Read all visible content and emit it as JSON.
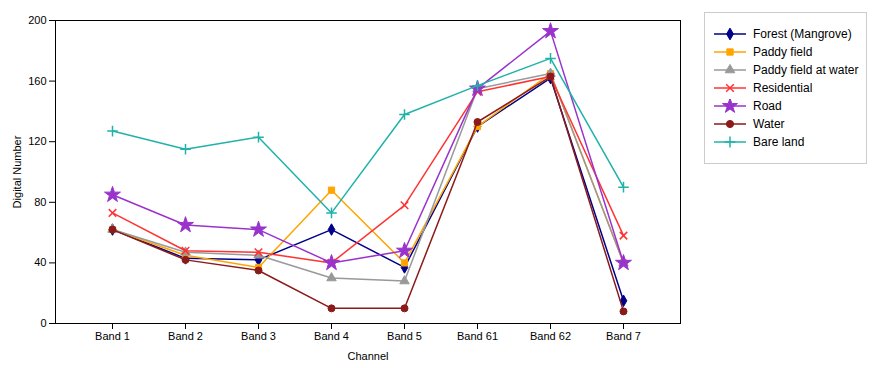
{
  "chart_data": {
    "type": "line",
    "xlabel": "Channel",
    "ylabel": "Digital Number",
    "categories": [
      "Band 1",
      "Band 2",
      "Band 3",
      "Band 4",
      "Band 5",
      "Band 61",
      "Band 62",
      "Band 7"
    ],
    "series": [
      {
        "name": "Forest (Mangrove)",
        "color": "#00008B",
        "marker": "diamond",
        "values": [
          62,
          43,
          42,
          62,
          37,
          130,
          162,
          15
        ]
      },
      {
        "name": "Paddy field",
        "color": "#FFA500",
        "marker": "square",
        "values": [
          62,
          45,
          37,
          88,
          40,
          130,
          165,
          40
        ]
      },
      {
        "name": "Paddy field at water",
        "color": "#999999",
        "marker": "triangle",
        "values": [
          62,
          47,
          45,
          30,
          28,
          155,
          165,
          40
        ]
      },
      {
        "name": "Residential",
        "color": "#FF3333",
        "marker": "x",
        "values": [
          73,
          48,
          47,
          40,
          78,
          153,
          163,
          58
        ]
      },
      {
        "name": "Road",
        "color": "#9933CC",
        "marker": "star",
        "values": [
          85,
          65,
          62,
          40,
          48,
          155,
          193,
          40
        ]
      },
      {
        "name": "Water",
        "color": "#8B1A1A",
        "marker": "circle",
        "values": [
          62,
          42,
          35,
          10,
          10,
          133,
          163,
          8
        ]
      },
      {
        "name": "Bare land",
        "color": "#20B2AA",
        "marker": "plus",
        "values": [
          127,
          115,
          123,
          73,
          138,
          157,
          175,
          90
        ]
      }
    ],
    "ylim": [
      0,
      200
    ],
    "yticks": [
      0,
      40,
      80,
      120,
      160,
      200
    ],
    "grid": false,
    "legend": "right"
  }
}
